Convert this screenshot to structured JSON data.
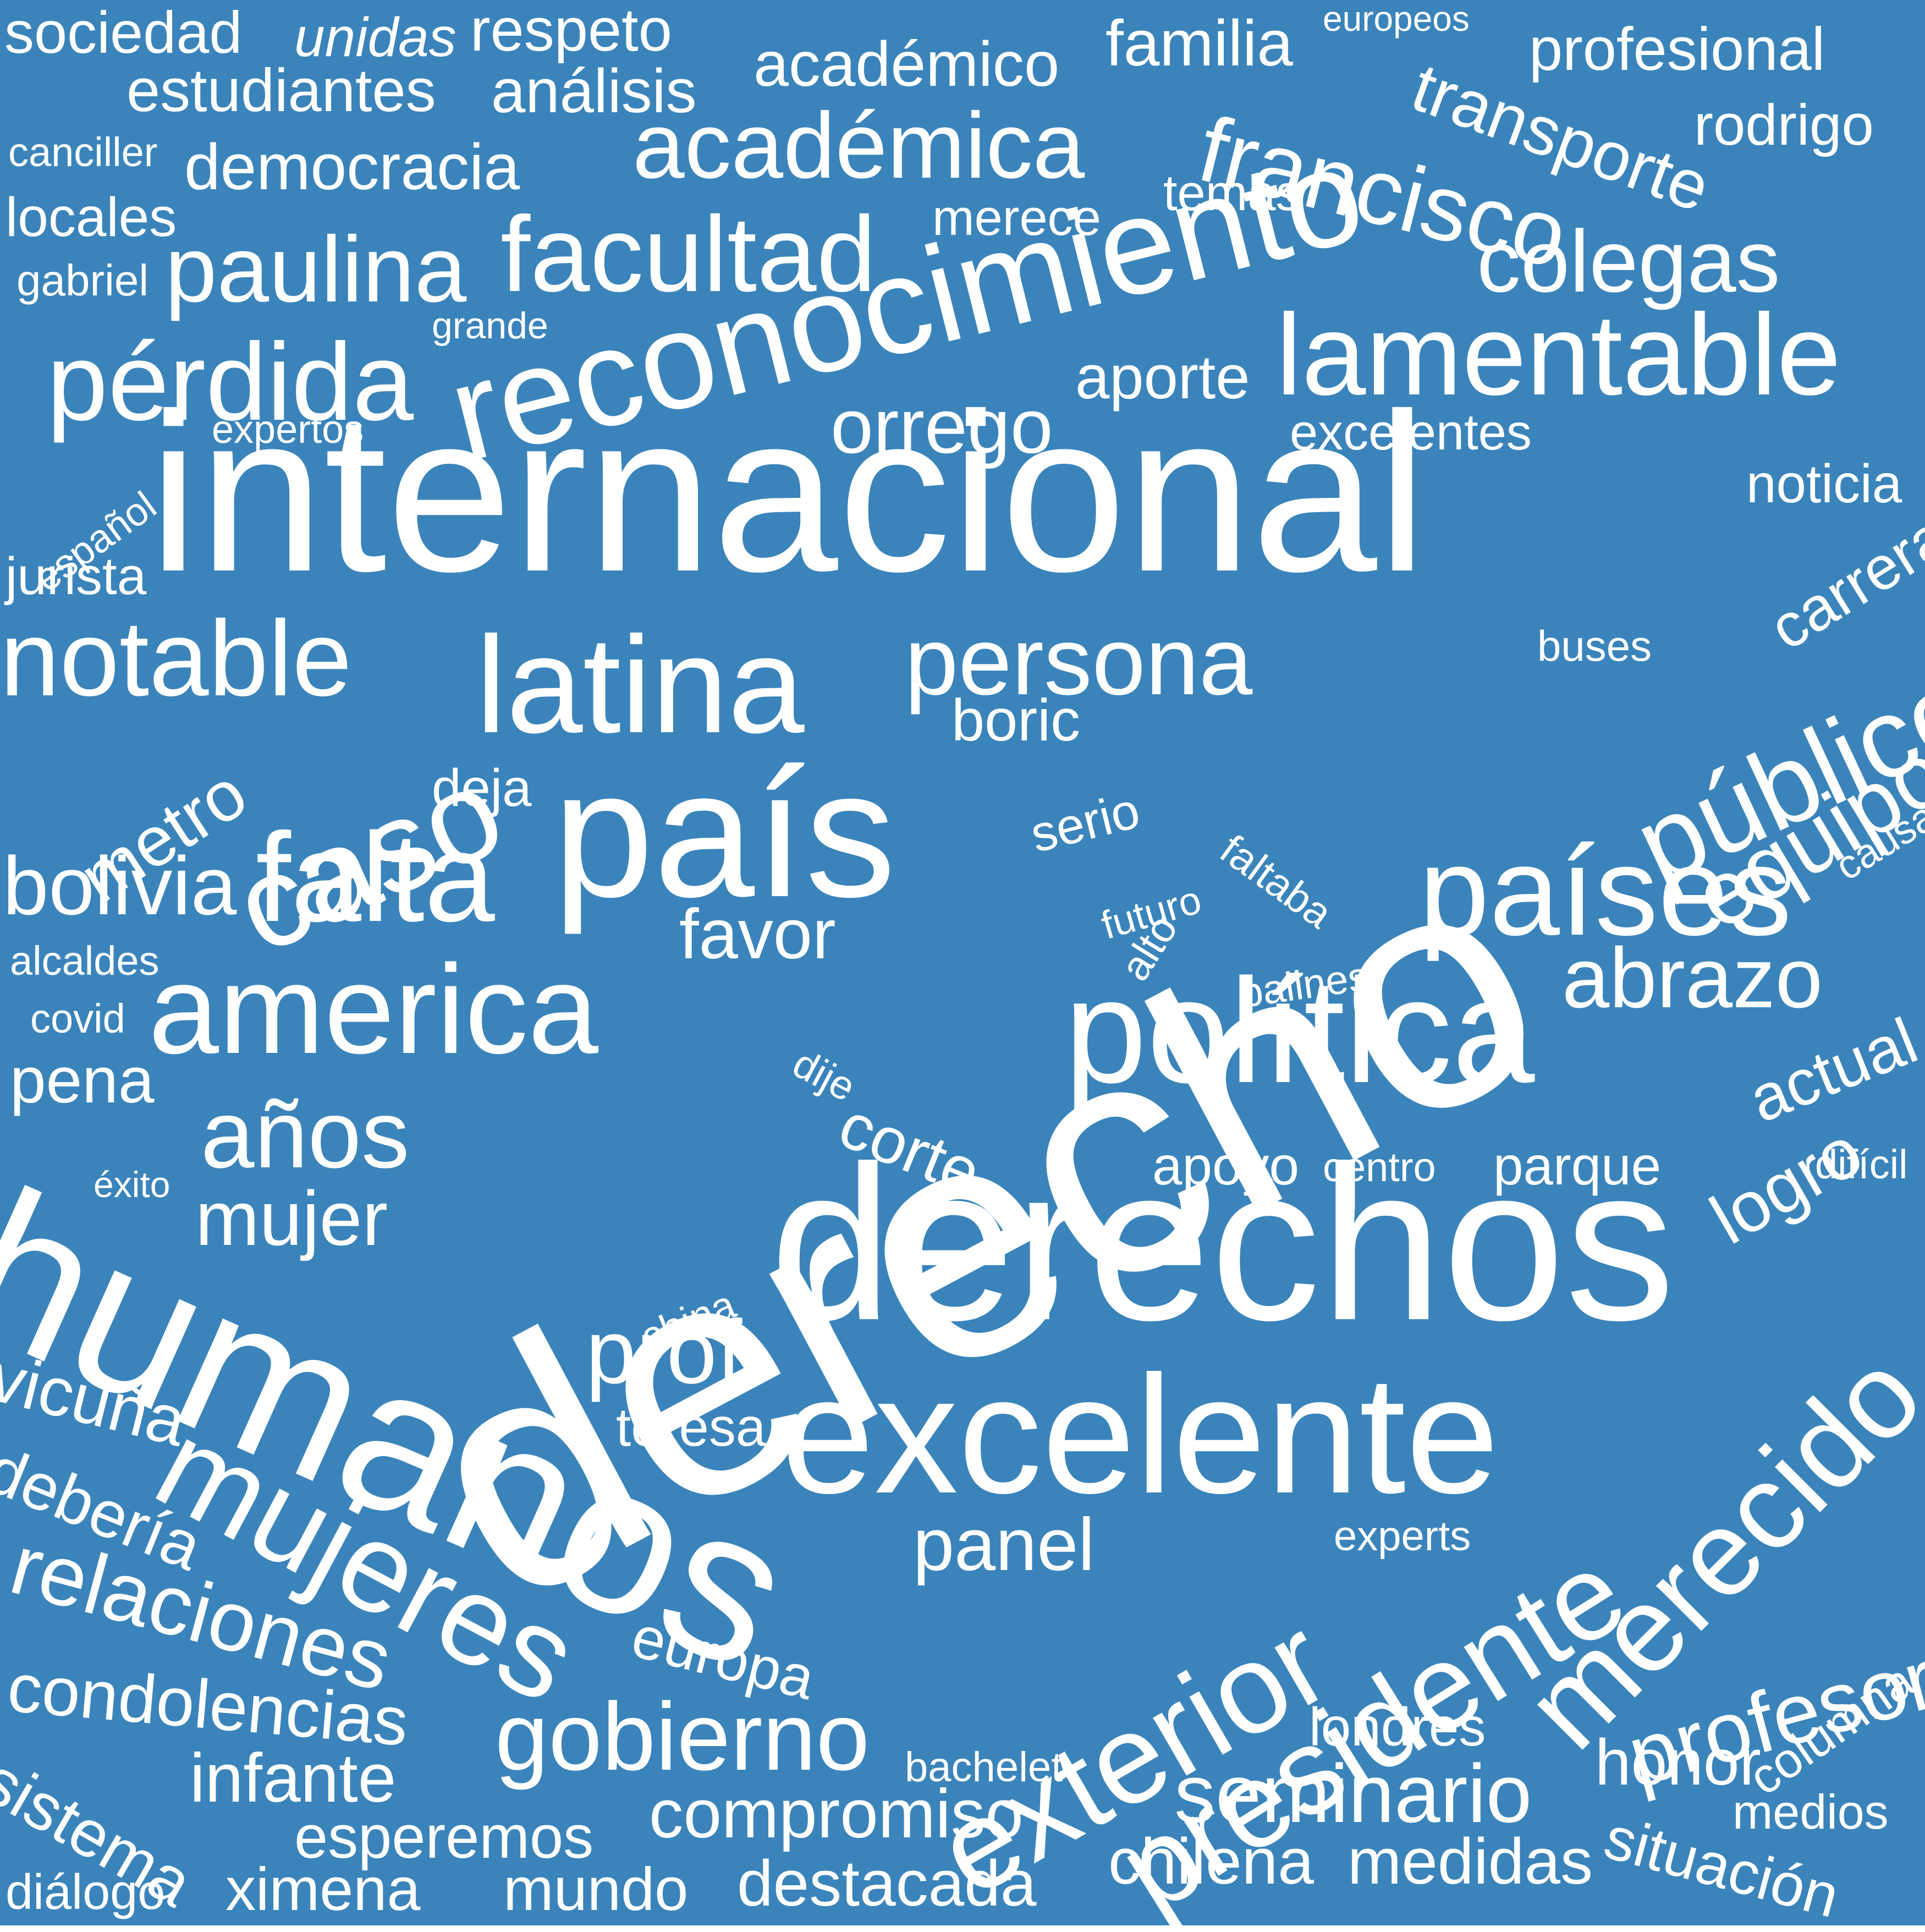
{
  "colors": {
    "background": "#3a84bb",
    "text": "#ffffff"
  },
  "words": [
    "sociedad",
    "unidas",
    "respeto",
    "europeos",
    "familia",
    "profesional",
    "estudiantes",
    "análisis",
    "académico",
    "transporte",
    "rodrigo",
    "canciller",
    "democracia",
    "académica",
    "francisco",
    "temas",
    "merece",
    "locales",
    "gabriel",
    "paulina",
    "facultad",
    "reconocimiento",
    "colegas",
    "pérdida",
    "grande",
    "lamentable",
    "aporte",
    "orrego",
    "expertos",
    "excelentes",
    "español",
    "internacional",
    "noticia",
    "jurista",
    "carrera",
    "notable",
    "latina",
    "persona",
    "caso",
    "buses",
    "público",
    "metro",
    "boric",
    "equipo",
    "país",
    "deja",
    "serio",
    "causa",
    "bolivia",
    "falta",
    "faltaba",
    "futuro",
    "alto",
    "países",
    "favor",
    "alcaldes",
    "balines",
    "derecho",
    "america",
    "abrazo",
    "covid",
    "política",
    "actual",
    "dije",
    "pena",
    "años",
    "logro",
    "corte",
    "éxito",
    "apoyo",
    "centro",
    "parque",
    "difícil",
    "mujer",
    "derechos",
    "humanos",
    "china",
    "prof",
    "vicuña",
    "teresa",
    "excelente",
    "merecido",
    "debería",
    "mujeres",
    "panel",
    "experts",
    "exterior",
    "columna",
    "relaciones",
    "presidente",
    "europa",
    "profesor",
    "condolencias",
    "londres",
    "gobierno",
    "sistema",
    "bachelet",
    "honor",
    "infante",
    "seminario",
    "compromiso",
    "medios",
    "esperemos",
    "situación",
    "diálogo",
    "ximena",
    "mundo",
    "destacada",
    "chilena",
    "medidas"
  ]
}
